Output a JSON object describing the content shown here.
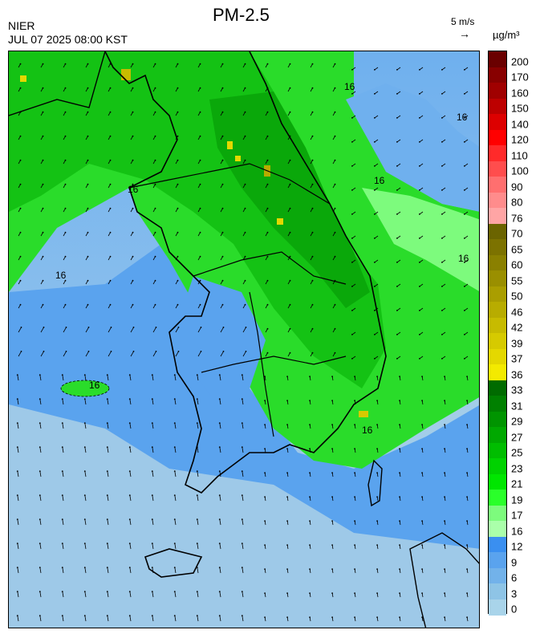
{
  "header": {
    "agency": "NIER",
    "datetime": "JUL 07 2025 08:00 KST",
    "title": "PM-2.5",
    "wind_scale_label": "5 m/s",
    "wind_scale_arrow": "→",
    "unit": "µg/m³"
  },
  "map": {
    "contour_label": "16",
    "contour_label_count": 8,
    "land_border_color": "#000000",
    "wind_vector_direction": "southerly to south-easterly, stronger over the sea"
  },
  "legend": {
    "labels": [
      "200",
      "170",
      "160",
      "150",
      "140",
      "120",
      "110",
      "100",
      "90",
      "80",
      "76",
      "70",
      "65",
      "60",
      "55",
      "50",
      "46",
      "42",
      "39",
      "37",
      "36",
      "33",
      "31",
      "29",
      "27",
      "25",
      "23",
      "21",
      "19",
      "17",
      "16",
      "12",
      "9",
      "6",
      "3",
      "0"
    ],
    "colors": [
      "#6a0000",
      "#880000",
      "#a00000",
      "#bd0000",
      "#dd0000",
      "#ff0000",
      "#ff2a2a",
      "#ff4d4d",
      "#ff6f6f",
      "#ff8c8c",
      "#ffa5a5",
      "#6b6400",
      "#7c7200",
      "#8a8000",
      "#9a8f00",
      "#aa9e00",
      "#b8ac00",
      "#c7bb00",
      "#d6ca00",
      "#e4d800",
      "#f3ea00",
      "#006b00",
      "#008000",
      "#009400",
      "#00a800",
      "#00bd00",
      "#00d200",
      "#00e600",
      "#2aff2a",
      "#7dfb7d",
      "#aaffaa",
      "#3a8ff0",
      "#5aa3ee",
      "#72b2ea",
      "#8ec4e6",
      "#a9d4ea"
    ]
  }
}
